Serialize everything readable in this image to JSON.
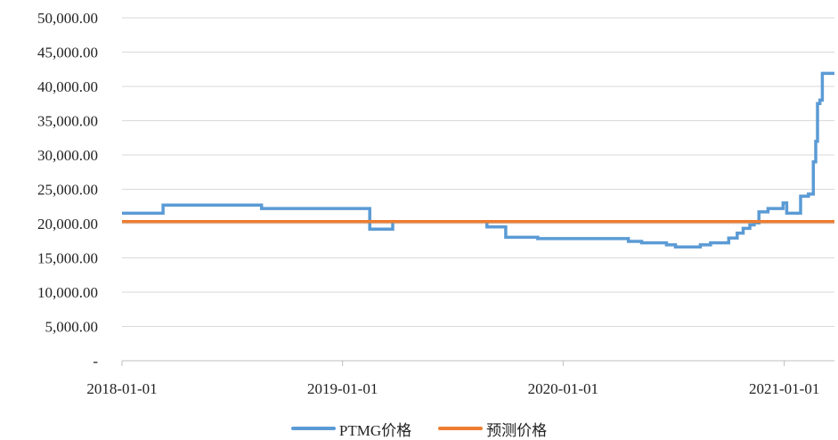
{
  "chart_data": {
    "type": "line",
    "title": "",
    "xlabel": "",
    "ylabel": "",
    "x_ticks": [
      "2018-01-01",
      "2019-01-01",
      "2020-01-01",
      "2021-01-01"
    ],
    "y_ticks": [
      "-",
      "5,000.00",
      "10,000.00",
      "15,000.00",
      "20,000.00",
      "25,000.00",
      "30,000.00",
      "35,000.00",
      "40,000.00",
      "45,000.00",
      "50,000.00"
    ],
    "ylim": [
      0,
      50000
    ],
    "xlim": [
      "2018-01-01",
      "2021-03-25"
    ],
    "grid": "horizontal",
    "legend_position": "bottom",
    "series": [
      {
        "name": "PTMG价格",
        "color": "#5B9BD5",
        "step": true,
        "points": [
          [
            "2018-01-01",
            21500
          ],
          [
            "2018-03-10",
            22700
          ],
          [
            "2018-08-20",
            22200
          ],
          [
            "2019-02-15",
            19200
          ],
          [
            "2019-03-25",
            20300
          ],
          [
            "2019-08-28",
            19500
          ],
          [
            "2019-09-28",
            18000
          ],
          [
            "2019-11-20",
            17800
          ],
          [
            "2020-04-18",
            17400
          ],
          [
            "2020-05-10",
            17200
          ],
          [
            "2020-06-20",
            16900
          ],
          [
            "2020-07-05",
            16600
          ],
          [
            "2020-08-15",
            16900
          ],
          [
            "2020-09-01",
            17200
          ],
          [
            "2020-10-01",
            17900
          ],
          [
            "2020-10-15",
            18600
          ],
          [
            "2020-10-25",
            19300
          ],
          [
            "2020-11-05",
            19800
          ],
          [
            "2020-11-12",
            20100
          ],
          [
            "2020-11-20",
            21700
          ],
          [
            "2020-12-05",
            22200
          ],
          [
            "2020-12-30",
            23000
          ],
          [
            "2021-01-05",
            21500
          ],
          [
            "2021-01-28",
            24000
          ],
          [
            "2021-02-10",
            24300
          ],
          [
            "2021-02-18",
            29000
          ],
          [
            "2021-02-22",
            32000
          ],
          [
            "2021-02-25",
            37500
          ],
          [
            "2021-03-01",
            38000
          ],
          [
            "2021-03-05",
            41900
          ],
          [
            "2021-03-25",
            41900
          ]
        ]
      },
      {
        "name": "预测价格",
        "color": "#ED7D31",
        "step": false,
        "points": [
          [
            "2018-01-01",
            20300
          ],
          [
            "2021-03-25",
            20300
          ]
        ]
      }
    ]
  }
}
